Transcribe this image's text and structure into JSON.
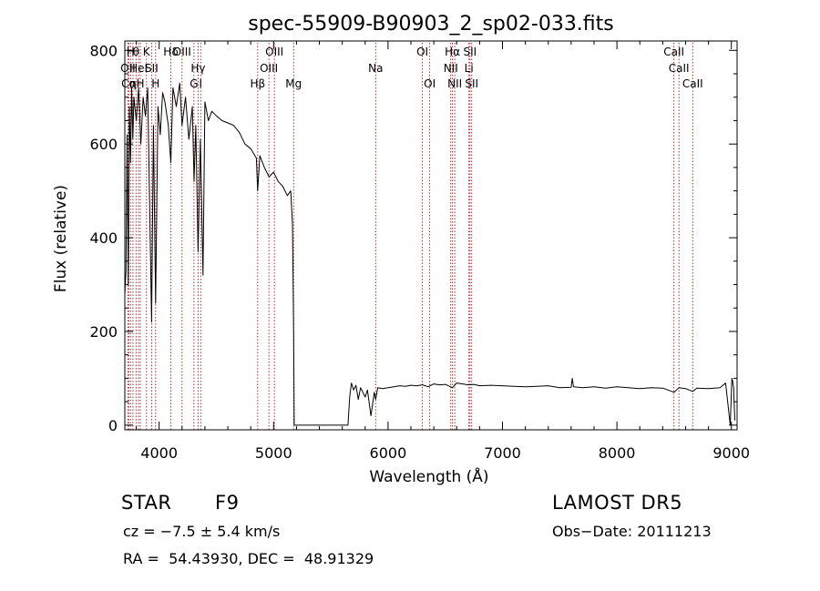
{
  "chart_data": {
    "type": "line",
    "title": "spec-55909-B90903_2_sp02-033.fits",
    "xlabel": "Wavelength (Å)",
    "ylabel": "Flux (relative)",
    "xlim": [
      3700,
      9050
    ],
    "ylim": [
      -10,
      820
    ],
    "xticks": [
      4000,
      5000,
      6000,
      7000,
      8000,
      9000
    ],
    "yticks": [
      0,
      200,
      400,
      600,
      800
    ],
    "grid": false,
    "series": [
      {
        "color": "#000000",
        "x": [
          3700,
          3710,
          3720,
          3730,
          3740,
          3750,
          3760,
          3770,
          3780,
          3800,
          3820,
          3840,
          3860,
          3880,
          3900,
          3920,
          3934,
          3950,
          3969,
          3990,
          4010,
          4030,
          4050,
          4080,
          4102,
          4120,
          4150,
          4180,
          4200,
          4230,
          4260,
          4290,
          4305,
          4320,
          4340,
          4360,
          4383,
          4400,
          4430,
          4460,
          4500,
          4550,
          4600,
          4650,
          4700,
          4750,
          4800,
          4850,
          4861,
          4880,
          4920,
          4960,
          5000,
          5040,
          5080,
          5120,
          5150,
          5165,
          5175,
          5180,
          5200,
          5600,
          5650,
          5665,
          5680,
          5700,
          5720,
          5740,
          5760,
          5780,
          5800,
          5820,
          5850,
          5880,
          5892,
          5910,
          5950,
          6000,
          6050,
          6100,
          6150,
          6200,
          6250,
          6300,
          6350,
          6400,
          6450,
          6500,
          6563,
          6600,
          6650,
          6700,
          6750,
          6800,
          6900,
          7000,
          7100,
          7200,
          7300,
          7400,
          7500,
          7600,
          7610,
          7620,
          7700,
          7800,
          7900,
          8000,
          8100,
          8200,
          8300,
          8400,
          8500,
          8542,
          8600,
          8662,
          8700,
          8800,
          8900,
          8950,
          8990,
          9000,
          9005,
          9010,
          9020,
          9030
        ],
        "y": [
          280,
          330,
          620,
          300,
          680,
          560,
          720,
          610,
          700,
          650,
          720,
          600,
          700,
          660,
          720,
          430,
          220,
          640,
          260,
          680,
          620,
          710,
          690,
          640,
          560,
          720,
          680,
          730,
          640,
          700,
          610,
          680,
          520,
          640,
          370,
          610,
          320,
          690,
          650,
          670,
          660,
          650,
          645,
          640,
          625,
          600,
          590,
          570,
          500,
          575,
          550,
          530,
          540,
          520,
          510,
          490,
          500,
          430,
          200,
          0,
          0,
          0,
          0,
          60,
          90,
          75,
          85,
          55,
          80,
          70,
          60,
          75,
          20,
          70,
          55,
          80,
          78,
          80,
          82,
          84,
          83,
          85,
          84,
          86,
          82,
          88,
          86,
          87,
          80,
          90,
          88,
          86,
          87,
          84,
          85,
          84,
          83,
          82,
          83,
          84,
          80,
          81,
          100,
          82,
          80,
          82,
          79,
          82,
          80,
          78,
          80,
          79,
          70,
          80,
          78,
          72,
          79,
          78,
          80,
          90,
          0,
          70,
          100,
          95,
          80,
          10
        ]
      }
    ],
    "line_labels": [
      {
        "x": 3727,
        "row": 2,
        "label": "OII"
      },
      {
        "x": 3734,
        "row": 3,
        "label": "Cα"
      },
      {
        "x": 3750,
        "row": 1,
        "label": "H"
      },
      {
        "x": 3771,
        "row": 3,
        "label": "η"
      },
      {
        "x": 3798,
        "row": 1,
        "label": "θ"
      },
      {
        "x": 3820,
        "row": 2,
        "label": "HeI"
      },
      {
        "x": 3835,
        "row": 3,
        "label": "H"
      },
      {
        "x": 3889,
        "row": 1,
        "label": "K"
      },
      {
        "x": 3934,
        "row": 2,
        "label": "SII"
      },
      {
        "x": 3969,
        "row": 3,
        "label": "H"
      },
      {
        "x": 4102,
        "row": 1,
        "label": "Hδ"
      },
      {
        "x": 4200,
        "row": 1,
        "label": "OIII"
      },
      {
        "x": 4304,
        "row": 3,
        "label": "G"
      },
      {
        "x": 4340,
        "row": 2,
        "label": "Hγ"
      },
      {
        "x": 4363,
        "row": 3,
        "label": "I"
      },
      {
        "x": 4861,
        "row": 3,
        "label": "Hβ"
      },
      {
        "x": 4959,
        "row": 2,
        "label": "OIII"
      },
      {
        "x": 5007,
        "row": 1,
        "label": "OIII"
      },
      {
        "x": 5175,
        "row": 3,
        "label": "Mg"
      },
      {
        "x": 5892,
        "row": 2,
        "label": "Na"
      },
      {
        "x": 6300,
        "row": 1,
        "label": "OI"
      },
      {
        "x": 6364,
        "row": 3,
        "label": "OI"
      },
      {
        "x": 6548,
        "row": 2,
        "label": "NII"
      },
      {
        "x": 6563,
        "row": 1,
        "label": "Hα"
      },
      {
        "x": 6583,
        "row": 3,
        "label": "NII"
      },
      {
        "x": 6707,
        "row": 2,
        "label": "Li"
      },
      {
        "x": 6716,
        "row": 1,
        "label": "SII"
      },
      {
        "x": 6731,
        "row": 3,
        "label": "SII"
      },
      {
        "x": 8498,
        "row": 1,
        "label": "CaII"
      },
      {
        "x": 8542,
        "row": 2,
        "label": "CaII"
      },
      {
        "x": 8662,
        "row": 3,
        "label": "CaII"
      }
    ]
  },
  "info": {
    "object_class": "STAR",
    "subclass": "F9",
    "survey": "LAMOST DR5",
    "redshift": "cz = −7.5 ± 5.4 km/s",
    "obs_date": "Obs−Date: 20111213",
    "coords": "RA =  54.43930, DEC =  48.91329"
  }
}
